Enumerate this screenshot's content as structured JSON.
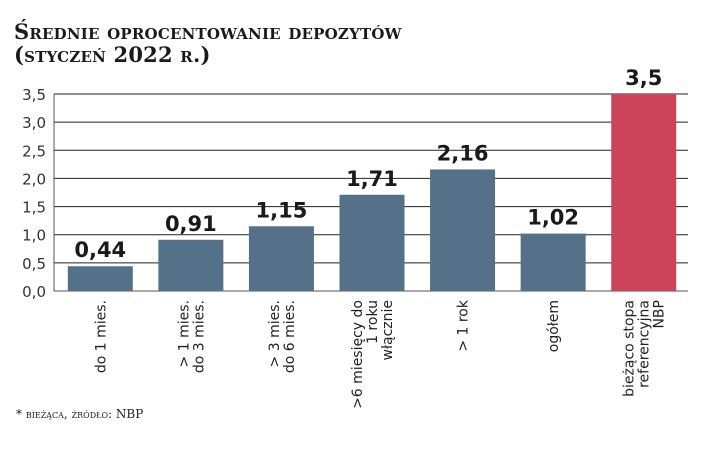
{
  "chart_data": {
    "type": "bar",
    "title": "Średnie oprocentowanie depozytów",
    "subtitle": "(styczeń 2022 r.)",
    "categories": [
      [
        "do 1 mies."
      ],
      [
        "> 1 mies.",
        "do 3 mies."
      ],
      [
        "> 3 mies.",
        "do 6 mies."
      ],
      [
        ">6 miesięcy do",
        "1 roku",
        "włącznie"
      ],
      [
        "> 1 rok"
      ],
      [
        "ogółem"
      ],
      [
        "bieżąco stopa",
        "referencyjna",
        "NBP"
      ]
    ],
    "values": [
      0.44,
      0.91,
      1.15,
      1.71,
      2.16,
      1.02,
      3.5
    ],
    "value_labels": [
      "0,44",
      "0,91",
      "1,15",
      "1,71",
      "2,16",
      "1,02",
      "3,5"
    ],
    "colors": [
      "#557089",
      "#557089",
      "#557089",
      "#557089",
      "#557089",
      "#557089",
      "#cc4459"
    ],
    "ylim": [
      0,
      3.5
    ],
    "yticks": [
      0,
      0.5,
      1.0,
      1.5,
      2.0,
      2.5,
      3.0,
      3.5
    ],
    "ytick_labels": [
      "0,0",
      "0,5",
      "1,0",
      "1,5",
      "2,0",
      "2,5",
      "3,0",
      "3,5"
    ],
    "grid": true,
    "xlabel": "",
    "ylabel": ""
  },
  "footnote": "* bieżąca, źródło: NBP"
}
